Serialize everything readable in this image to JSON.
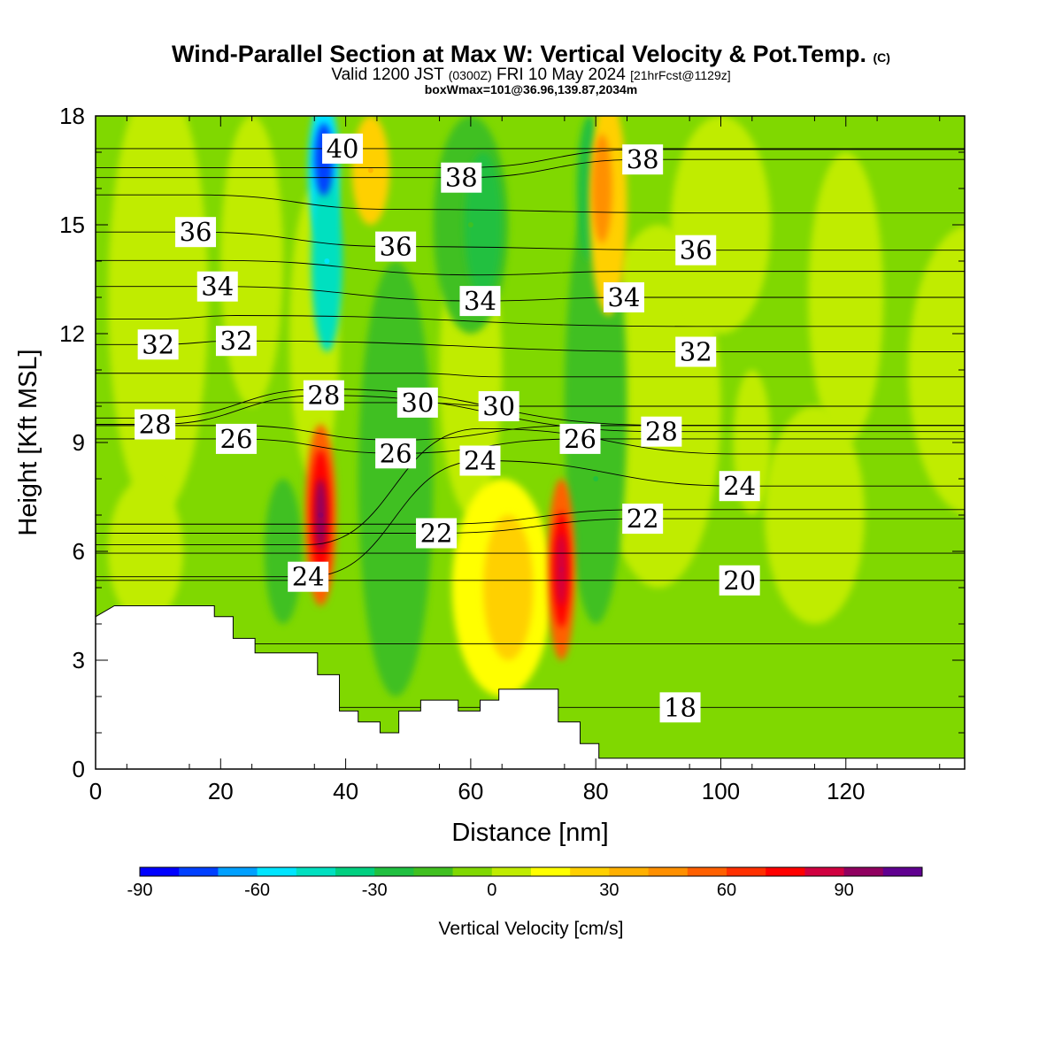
{
  "header": {
    "title": "Wind-Parallel Section at Max W: Vertical Velocity & Pot.Temp.",
    "title_mark": "(C)",
    "valid_prefix": "Valid 1200 JST",
    "valid_zulu": "(0300Z)",
    "valid_date": "FRI 10 May 2024",
    "forecast": "[21hrFcst@1129z]",
    "box_info": "boxWmax=101@36.96,139.87,2034m"
  },
  "chart_data": {
    "type": "heatmap",
    "xlabel": "Distance [nm]",
    "ylabel": "Height [Kft MSL]",
    "xlim": [
      0,
      139
    ],
    "ylim": [
      0,
      18
    ],
    "x_ticks": [
      "0",
      "20",
      "40",
      "60",
      "80",
      "100",
      "120"
    ],
    "y_ticks": [
      "0",
      "3",
      "6",
      "9",
      "12",
      "15",
      "18"
    ],
    "colorbar": {
      "title": "Vertical Velocity [cm/s]",
      "range": [
        -90,
        110
      ],
      "step": 10,
      "tick_labels": [
        "-90",
        "-60",
        "-30",
        "0",
        "30",
        "60",
        "90"
      ],
      "colors": [
        "#0000ff",
        "#0040ff",
        "#00a0ff",
        "#00e5ff",
        "#00e0c0",
        "#00d080",
        "#20c040",
        "#40c020",
        "#80d800",
        "#c0ec00",
        "#ffff00",
        "#ffd000",
        "#ffb000",
        "#ff9000",
        "#ff6000",
        "#ff3000",
        "#ff0000",
        "#d00040",
        "#900060",
        "#600090"
      ]
    },
    "terrain_profile_kft": [
      [
        0,
        4.2
      ],
      [
        3,
        4.5
      ],
      [
        19,
        4.5
      ],
      [
        19,
        4.2
      ],
      [
        22,
        4.2
      ],
      [
        22,
        3.6
      ],
      [
        25.5,
        3.6
      ],
      [
        25.5,
        3.2
      ],
      [
        35.5,
        3.2
      ],
      [
        35.5,
        2.6
      ],
      [
        39,
        2.6
      ],
      [
        39,
        1.6
      ],
      [
        42,
        1.6
      ],
      [
        42,
        1.3
      ],
      [
        45.5,
        1.3
      ],
      [
        45.5,
        1.0
      ],
      [
        48.5,
        1.0
      ],
      [
        48.5,
        1.6
      ],
      [
        52,
        1.6
      ],
      [
        52,
        1.9
      ],
      [
        58,
        1.9
      ],
      [
        58,
        1.6
      ],
      [
        61.5,
        1.6
      ],
      [
        61.5,
        1.9
      ],
      [
        64.5,
        1.9
      ],
      [
        64.5,
        2.2
      ],
      [
        74,
        2.2
      ],
      [
        74,
        1.3
      ],
      [
        77.5,
        1.3
      ],
      [
        77.5,
        0.7
      ],
      [
        80.5,
        0.7
      ],
      [
        80.5,
        0.3
      ],
      [
        139,
        0.3
      ]
    ],
    "vertical_velocity_features": [
      {
        "x": 36,
        "y": 7,
        "value": 95
      },
      {
        "x": 74.5,
        "y": 5.5,
        "value": 85
      },
      {
        "x": 36.5,
        "y": 16.5,
        "value": -80
      },
      {
        "x": 37,
        "y": 14,
        "value": -60
      },
      {
        "x": 81,
        "y": 16,
        "value": 40
      },
      {
        "x": 44,
        "y": 16.5,
        "value": 30
      },
      {
        "x": 65,
        "y": 5,
        "value": 25
      },
      {
        "x": 60,
        "y": 15,
        "value": -20
      },
      {
        "x": 80,
        "y": 8,
        "value": -25
      }
    ],
    "theta_contour_labels": [
      {
        "text": "40",
        "x": 39.5,
        "y": 17.1
      },
      {
        "text": "38",
        "x": 58.5,
        "y": 16.3
      },
      {
        "text": "38",
        "x": 87.5,
        "y": 16.8
      },
      {
        "text": "36",
        "x": 16,
        "y": 14.8
      },
      {
        "text": "36",
        "x": 48,
        "y": 14.4
      },
      {
        "text": "36",
        "x": 96,
        "y": 14.3
      },
      {
        "text": "34",
        "x": 19.5,
        "y": 13.3
      },
      {
        "text": "34",
        "x": 61.5,
        "y": 12.9
      },
      {
        "text": "34",
        "x": 84.5,
        "y": 13.0
      },
      {
        "text": "32",
        "x": 10,
        "y": 11.7
      },
      {
        "text": "32",
        "x": 22.5,
        "y": 11.8
      },
      {
        "text": "32",
        "x": 96,
        "y": 11.5
      },
      {
        "text": "30",
        "x": 51.5,
        "y": 10.1
      },
      {
        "text": "30",
        "x": 64.5,
        "y": 10.0
      },
      {
        "text": "28",
        "x": 9.5,
        "y": 9.5
      },
      {
        "text": "28",
        "x": 36.5,
        "y": 10.3
      },
      {
        "text": "28",
        "x": 90.5,
        "y": 9.3
      },
      {
        "text": "26",
        "x": 22.5,
        "y": 9.1
      },
      {
        "text": "26",
        "x": 48,
        "y": 8.7
      },
      {
        "text": "26",
        "x": 77.5,
        "y": 9.1
      },
      {
        "text": "24",
        "x": 61.5,
        "y": 8.5
      },
      {
        "text": "24",
        "x": 103,
        "y": 7.8
      },
      {
        "text": "24",
        "x": 34,
        "y": 5.3
      },
      {
        "text": "22",
        "x": 54.5,
        "y": 6.5
      },
      {
        "text": "22",
        "x": 87.5,
        "y": 6.9
      },
      {
        "text": "20",
        "x": 103,
        "y": 5.2
      },
      {
        "text": "18",
        "x": 93.5,
        "y": 1.7
      }
    ],
    "grid": false
  }
}
